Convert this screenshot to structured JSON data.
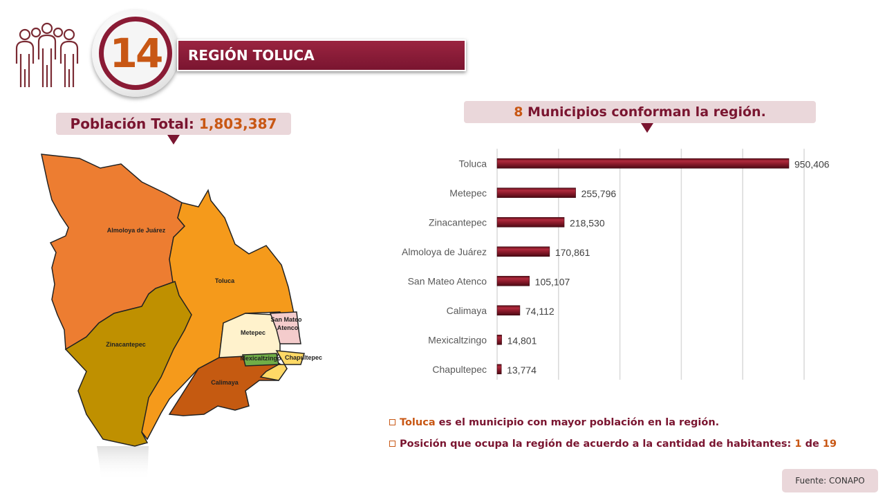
{
  "header": {
    "region_number": "14",
    "region_title": "REGIÓN TOLUCA",
    "icon": "people-group-icon"
  },
  "population": {
    "label": "Población Total:",
    "value": "1,803,387"
  },
  "municipalities_header": {
    "count": "8",
    "text": "Municipios conforman la región."
  },
  "map": {
    "labels": {
      "almoloya": "Almoloya de Juárez",
      "toluca": "Toluca",
      "zinacantepec": "Zinacantepec",
      "metepec": "Metepec",
      "san_mateo_1": "San Mateo",
      "san_mateo_2": "Atenco",
      "mexicaltzingo": "Mexicaltzingo",
      "chapultepec": "Chapultepec",
      "calimaya": "Calimaya"
    },
    "colors": {
      "almoloya": "#ed7d31",
      "toluca": "#f59a1b",
      "zinacantepec": "#bf9000",
      "metepec": "#fff2cc",
      "san_mateo": "#f4cccc",
      "mexicaltzingo": "#70ad47",
      "chapultepec": "#ffd966",
      "calimaya": "#c55a11"
    }
  },
  "chart_data": {
    "type": "bar",
    "orientation": "horizontal",
    "categories": [
      "Toluca",
      "Metepec",
      "Zinacantepec",
      "Almoloya de Juárez",
      "San Mateo Atenco",
      "Calimaya",
      "Mexicaltzingo",
      "Chapultepec"
    ],
    "values": [
      950406,
      255796,
      218530,
      170861,
      105107,
      74112,
      14801,
      13774
    ],
    "value_labels": [
      "950,406",
      "255,796",
      "218,530",
      "170,861",
      "105,107",
      "74,112",
      "14,801",
      "13,774"
    ],
    "xlim": [
      0,
      1000000
    ],
    "grid": true,
    "bar_color": "#8b1a2b"
  },
  "notes": {
    "note1_highlight": "Toluca",
    "note1_text": "es el municipio con mayor población en la región.",
    "note2_text": "Posición que ocupa la región de acuerdo a la cantidad de habitantes:",
    "note2_position": "1",
    "note2_of": "de",
    "note2_total": "19"
  },
  "source": "Fuente: CONAPO"
}
